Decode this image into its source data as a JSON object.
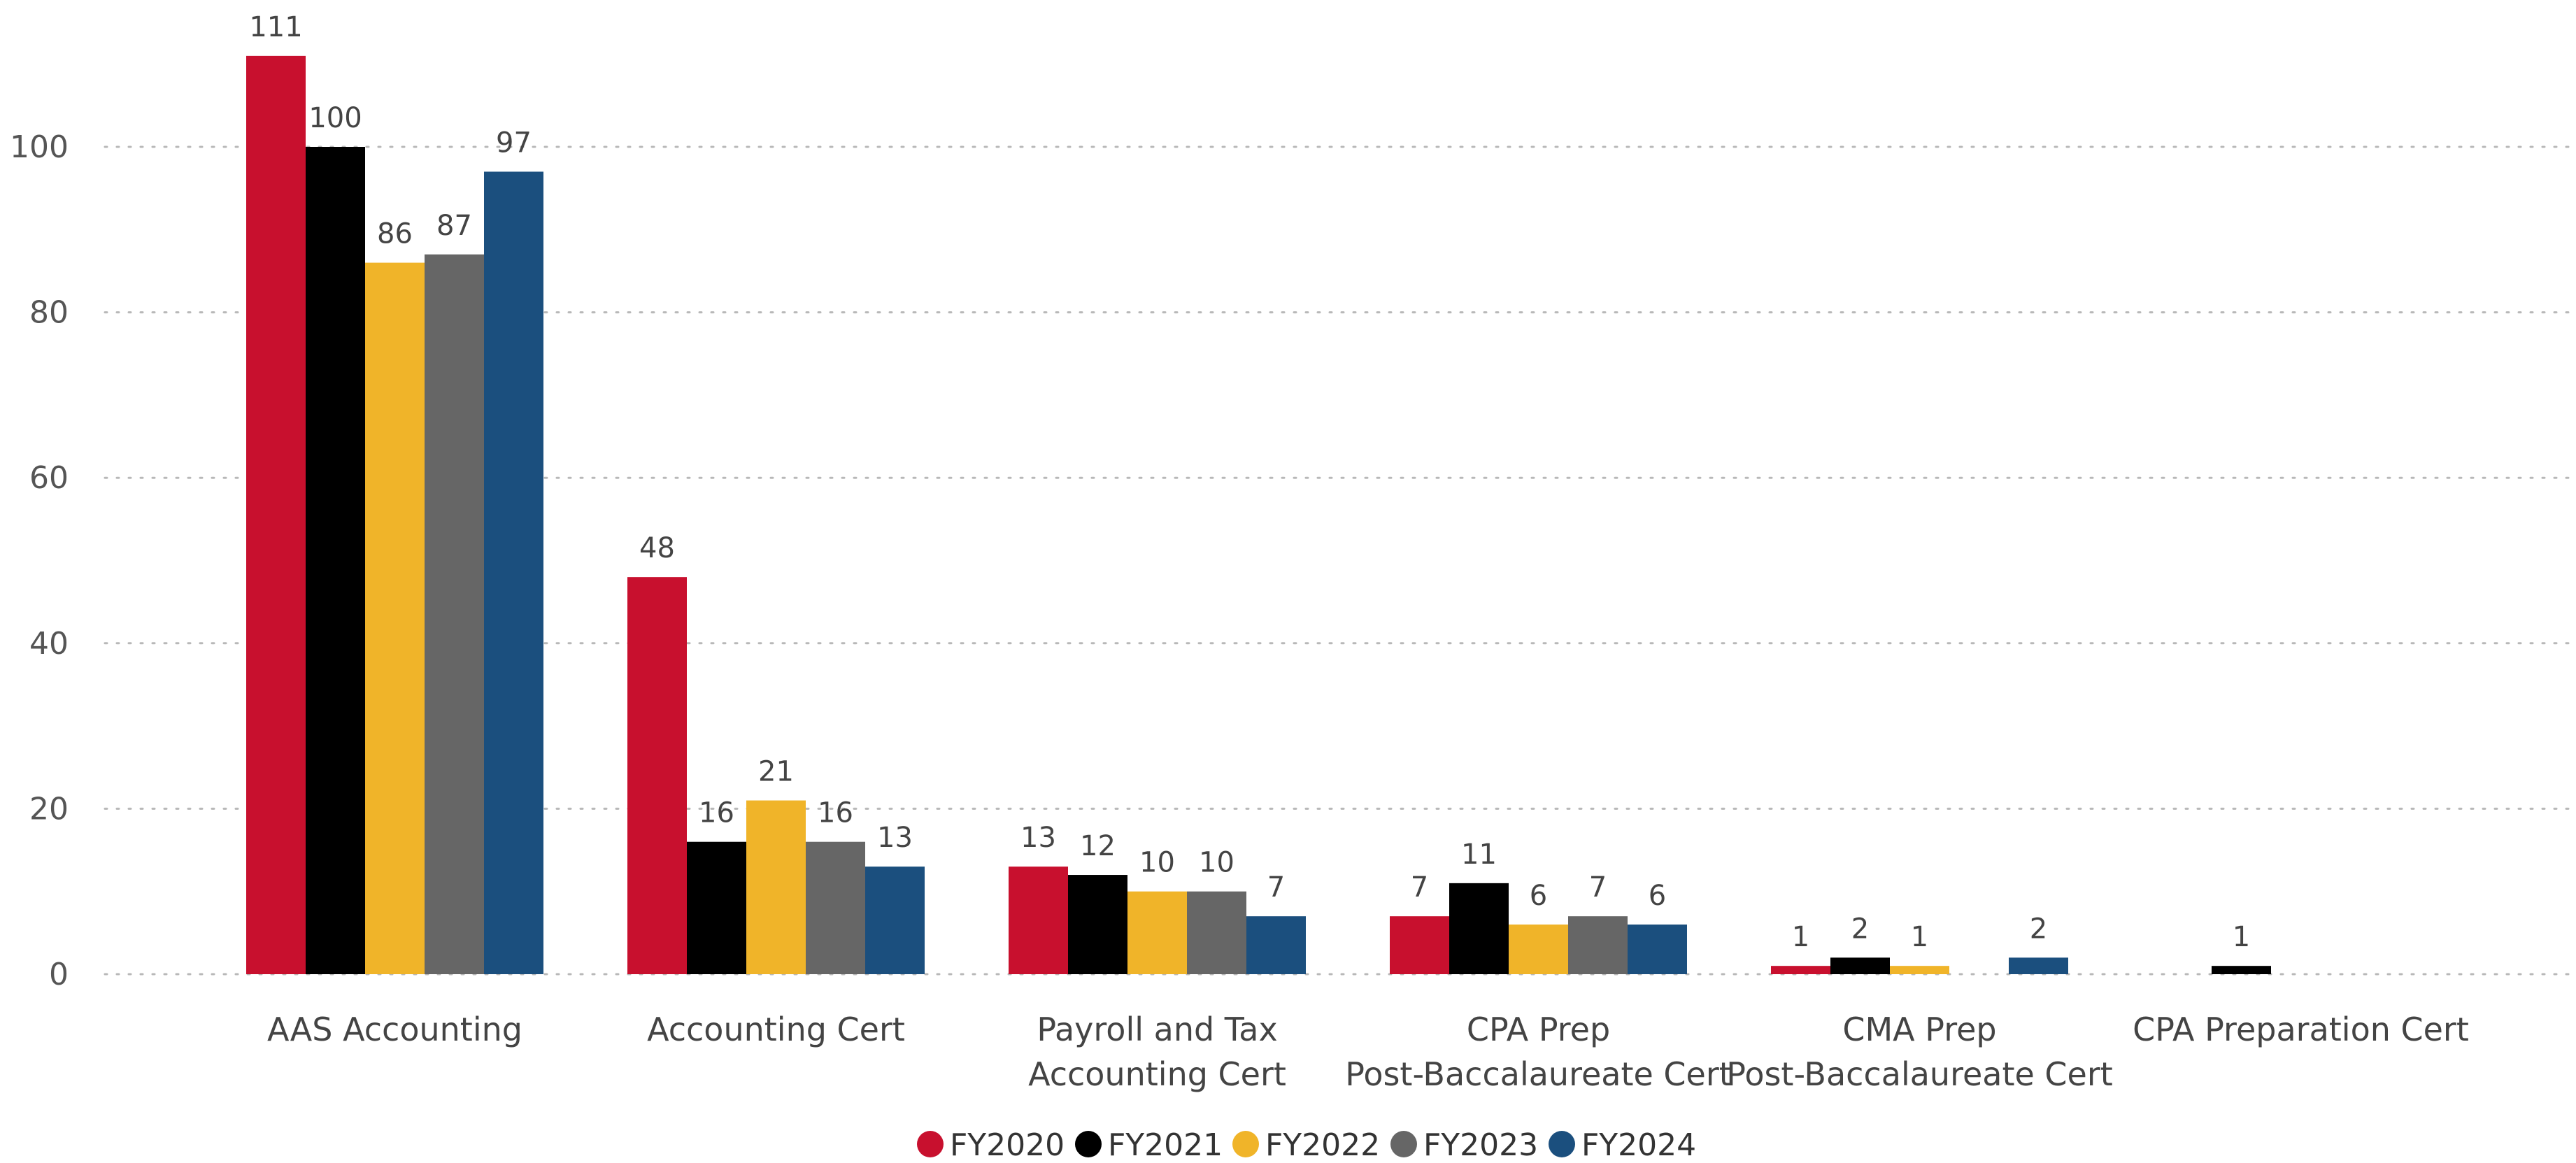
{
  "chart_data": {
    "type": "bar",
    "categories": [
      [
        "AAS Accounting"
      ],
      [
        "Accounting Cert"
      ],
      [
        "Payroll and Tax",
        "Accounting Cert"
      ],
      [
        "CPA Prep",
        "Post-Baccalaureate Cert"
      ],
      [
        "CMA Prep",
        "Post-Baccalaureate Cert"
      ],
      [
        "CPA Preparation Cert"
      ]
    ],
    "series": [
      {
        "name": "FY2020",
        "color": "#C8102E",
        "values": [
          111,
          48,
          13,
          7,
          1,
          null
        ]
      },
      {
        "name": "FY2021",
        "color": "#000000",
        "values": [
          100,
          16,
          12,
          11,
          2,
          1
        ]
      },
      {
        "name": "FY2022",
        "color": "#F0B429",
        "values": [
          86,
          21,
          10,
          6,
          1,
          null
        ]
      },
      {
        "name": "FY2023",
        "color": "#666666",
        "values": [
          87,
          16,
          10,
          7,
          null,
          null
        ]
      },
      {
        "name": "FY2024",
        "color": "#1B4F7E",
        "values": [
          97,
          13,
          7,
          6,
          2,
          null
        ]
      }
    ],
    "y_ticks": [
      "0",
      "20",
      "40",
      "60",
      "80",
      "100"
    ],
    "ylim": [
      0,
      115
    ],
    "grid": true,
    "legend_position": "bottom-center",
    "title": "",
    "xlabel": "",
    "ylabel": ""
  }
}
